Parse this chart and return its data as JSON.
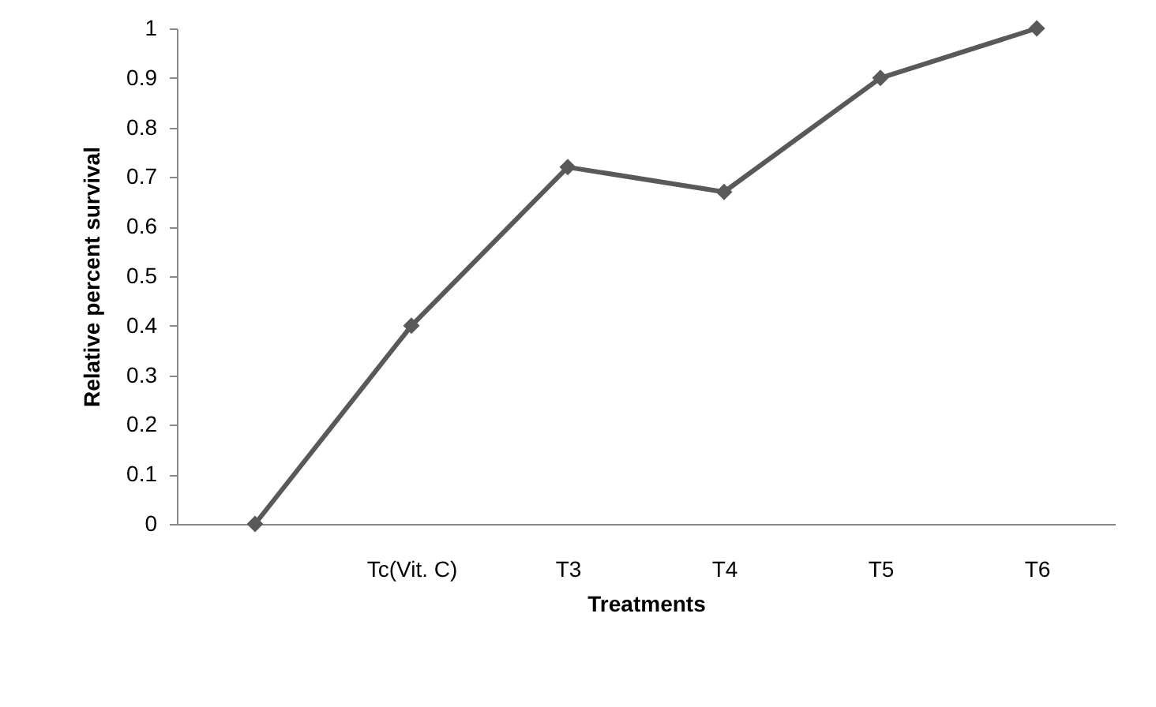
{
  "chart_data": {
    "type": "line",
    "xlabel": "Treatments",
    "ylabel": "Relative percent survival",
    "categories": [
      null,
      "Tc(Vit. C)",
      "T3",
      "T4",
      "T5",
      "T6"
    ],
    "series": [
      {
        "color": "#595959",
        "values": [
          0,
          0.4,
          0.72,
          0.67,
          0.9,
          1
        ]
      }
    ],
    "ylim": [
      0,
      1
    ],
    "yticks": [
      0,
      0.1,
      0.2,
      0.3,
      0.4,
      0.5,
      0.6,
      0.7,
      0.8,
      0.9,
      1
    ],
    "grid": false,
    "marker": "diamond",
    "line_style": "solid"
  }
}
